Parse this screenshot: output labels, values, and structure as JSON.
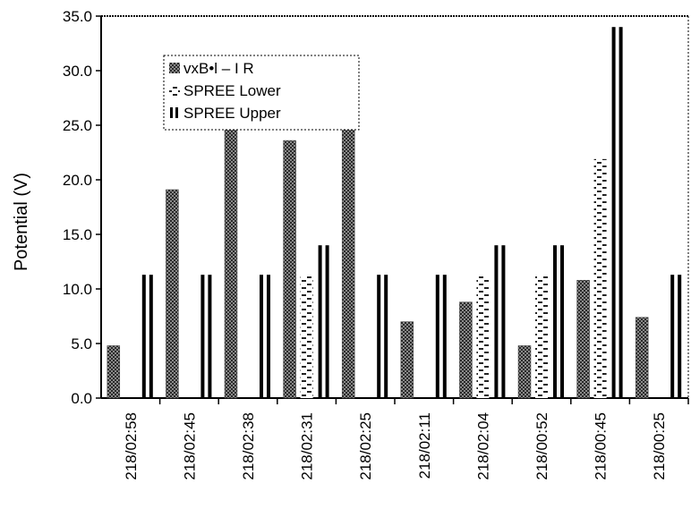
{
  "chart_data": {
    "type": "bar",
    "title": "",
    "xlabel": "",
    "ylabel": "Potential (V)",
    "ylim": [
      0,
      35
    ],
    "yticks": [
      "0.0",
      "5.0",
      "10.0",
      "15.0",
      "20.0",
      "25.0",
      "30.0",
      "35.0"
    ],
    "grid": false,
    "legend_position": "top-left",
    "categories": [
      "218/02:58",
      "218/02:45",
      "218/02:38",
      "218/02:31",
      "218/02:25",
      "218/02:11",
      "218/02:04",
      "218/00:52",
      "218/00:45",
      "218/00:25"
    ],
    "series": [
      {
        "name": "vxB•l – I R",
        "pattern": "crosshatch",
        "values": [
          4.8,
          19.1,
          25.0,
          23.6,
          25.8,
          7.0,
          8.8,
          4.8,
          10.8,
          7.4
        ]
      },
      {
        "name": "SPREE Lower",
        "pattern": "dashes",
        "values": [
          null,
          null,
          null,
          11.3,
          null,
          null,
          11.3,
          11.3,
          21.9,
          null
        ]
      },
      {
        "name": "SPREE Upper",
        "pattern": "double-bar",
        "values": [
          11.3,
          11.3,
          11.3,
          14.0,
          11.3,
          11.3,
          14.0,
          14.0,
          34.0,
          11.3
        ]
      }
    ]
  }
}
